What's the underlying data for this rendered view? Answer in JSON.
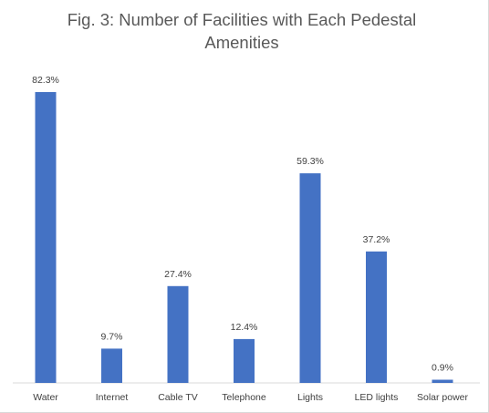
{
  "chart_data": {
    "type": "bar",
    "title": "Fig. 3: Number of Facilities with Each Pedestal Amenities",
    "categories": [
      "Water",
      "Internet",
      "Cable TV",
      "Telephone",
      "Lights",
      "LED lights",
      "Solar power"
    ],
    "values": [
      82.3,
      9.7,
      27.4,
      12.4,
      59.3,
      37.2,
      0.9
    ],
    "data_labels": [
      "82.3%",
      "9.7%",
      "27.4%",
      "12.4%",
      "59.3%",
      "37.2%",
      "0.9%"
    ],
    "xlabel": "",
    "ylabel": "",
    "ylim": [
      0,
      82.3
    ],
    "grid": false,
    "legend": "none",
    "bar_color": "#4472C4",
    "axis_color": "#d9d9d9"
  }
}
